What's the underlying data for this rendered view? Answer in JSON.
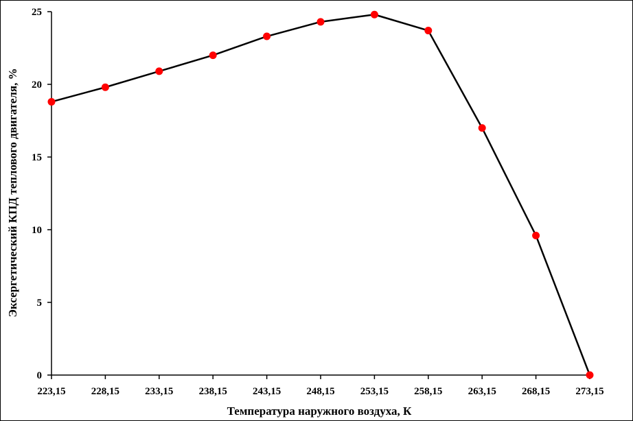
{
  "chart_data": {
    "type": "line",
    "title": "",
    "xlabel": "Температура наружного воздуха, К",
    "ylabel": "Эксергетический КПД теплового двигателя, %",
    "x": [
      "223,15",
      "228,15",
      "233,15",
      "238,15",
      "243,15",
      "248,15",
      "253,15",
      "258,15",
      "263,15",
      "268,15",
      "273,15"
    ],
    "series": [
      {
        "values": [
          18.8,
          19.8,
          20.9,
          22.0,
          23.3,
          24.3,
          24.8,
          23.7,
          17.0,
          9.6,
          0.0
        ]
      }
    ],
    "yticks": [
      "0",
      "5",
      "10",
      "15",
      "20",
      "25"
    ],
    "ylim": [
      0,
      25
    ],
    "grid": false,
    "legend": "none",
    "colors": {
      "line": "#000000",
      "marker": "#ff0000"
    }
  }
}
